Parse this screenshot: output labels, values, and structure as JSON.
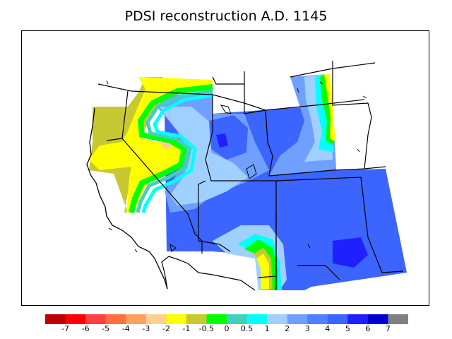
{
  "title": "PDSI reconstruction A.D. 1145",
  "legend": {
    "colors": [
      "#c00000",
      "#ff0000",
      "#ff4040",
      "#ff7040",
      "#ffa060",
      "#ffd090",
      "#ffff00",
      "#c8c832",
      "#00ff00",
      "#40d0c0",
      "#00ffff",
      "#a0d0ff",
      "#6fa0ff",
      "#4f80ff",
      "#3c64ff",
      "#2020ff",
      "#0000d0",
      "#808080"
    ],
    "tick_labels": [
      "-7",
      "-6",
      "-5",
      "-4",
      "-3",
      "-2",
      "-1",
      "-0.5",
      "0",
      "0.5",
      "1",
      "2",
      "3",
      "4",
      "5",
      "6",
      "7"
    ]
  },
  "colors": {
    "moist_deep": "#0000d0",
    "moist": "#3c64ff",
    "moist_light": "#6fa0ff",
    "near_normal": "#a0d0ff",
    "cyan": "#00ffff",
    "green": "#00ff00",
    "olive": "#c8c832",
    "yellow": "#ffff00",
    "orange": "#ffd090"
  }
}
